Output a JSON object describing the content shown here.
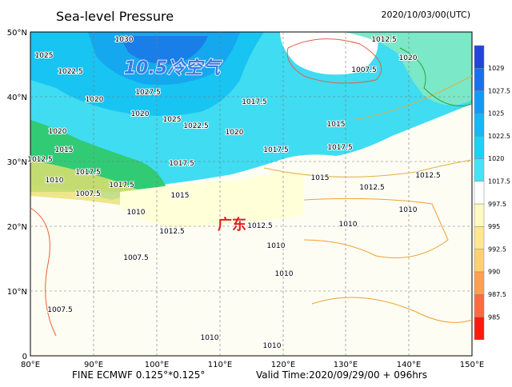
{
  "header": {
    "title": "Sea-level Pressure",
    "date": "2020/10/03/00(UTC)"
  },
  "axes": {
    "lat_labels": [
      "50°N",
      "40°N",
      "30°N",
      "20°N",
      "10°N",
      "0"
    ],
    "lon_labels": [
      "80°E",
      "90°E",
      "100°E",
      "110°E",
      "120°E",
      "130°E",
      "140°E",
      "150°E"
    ]
  },
  "colorbar": {
    "labels": [
      "1029",
      "1027.5",
      "1025",
      "1022.5",
      "1020",
      "1017.5",
      "997.5",
      "995",
      "992.5",
      "990",
      "987.5",
      "985"
    ]
  },
  "annotations": {
    "cold_air": "10.5冷空气",
    "region": "广东"
  },
  "contour_labels": [
    "1030",
    "1025",
    "1022.5",
    "1027.5",
    "1020",
    "1020",
    "1025",
    "1022.5",
    "1020",
    "1017.5",
    "1020",
    "1015",
    "1012.5",
    "1017.5",
    "1017.5",
    "1010",
    "1007.5",
    "1017.5",
    "1015",
    "1017.5",
    "1015",
    "1017.5",
    "1015",
    "1012.5",
    "1012.5",
    "1010",
    "1012.5",
    "1007.5",
    "1020",
    "1012.5",
    "1010",
    "1012.5",
    "1010",
    "1010",
    "1007.5",
    "1010",
    "1007.5",
    "1010",
    "1010"
  ],
  "footer": {
    "model": "FINE ECMWF 0.125°*0.125°",
    "valid": "Valid Time:2020/09/29/00 + 096hrs"
  }
}
